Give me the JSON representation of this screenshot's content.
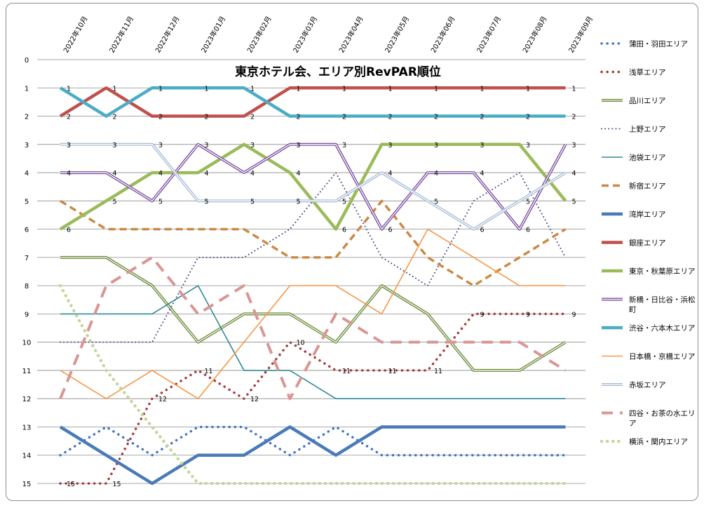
{
  "chart_data": {
    "type": "line",
    "title": "東京ホテル会、エリア別RevPAR順位",
    "x": [
      "2022年10月",
      "2022年11月",
      "2022年12月",
      "2023年01月",
      "2023年02月",
      "2023年03月",
      "2023年04月",
      "2023年05月",
      "2023年06月",
      "2023年07月",
      "2023年08月",
      "2023年09月"
    ],
    "y_ticks": [
      "0",
      "1",
      "2",
      "3",
      "4",
      "5",
      "6",
      "7",
      "8",
      "9",
      "10",
      "11",
      "12",
      "13",
      "14",
      "15"
    ],
    "ylim": [
      0,
      15
    ],
    "y_inverted": true,
    "grid": true,
    "legend_position": "right",
    "series": [
      {
        "name": "蒲田・羽田エリア",
        "color": "#4472c4",
        "style": "dot-round",
        "values": [
          14,
          13,
          14,
          13,
          13,
          14,
          13,
          14,
          14,
          14,
          14,
          14
        ],
        "labels": []
      },
      {
        "name": "浅草エリア",
        "color": "#a83a3a",
        "style": "dot-round",
        "values": [
          15,
          15,
          12,
          11,
          12,
          10,
          11,
          11,
          11,
          9,
          9,
          9
        ],
        "labels": [
          "15",
          "15",
          "12",
          "11",
          "12",
          "10",
          "11",
          "11",
          "11",
          "9",
          "9",
          "9"
        ]
      },
      {
        "name": "品川エリア",
        "color": "#6a8a3a",
        "style": "double",
        "values": [
          7,
          7,
          8,
          10,
          9,
          9,
          10,
          8,
          9,
          11,
          11,
          10
        ],
        "labels": []
      },
      {
        "name": "上野エリア",
        "color": "#4d4d8c",
        "style": "dot-small",
        "values": [
          10,
          10,
          10,
          7,
          7,
          6,
          4,
          7,
          8,
          5,
          4,
          7
        ],
        "labels": []
      },
      {
        "name": "池袋エリア",
        "color": "#2e8b95",
        "style": "solid-thin",
        "values": [
          9,
          9,
          9,
          8,
          11,
          11,
          12,
          12,
          12,
          12,
          12,
          12
        ],
        "labels": []
      },
      {
        "name": "新宿エリア",
        "color": "#cc8a45",
        "style": "dash",
        "values": [
          5,
          6,
          6,
          6,
          6,
          7,
          7,
          5,
          7,
          8,
          7,
          6
        ],
        "labels": []
      },
      {
        "name": "湾岸エリア",
        "color": "#4a7ab8",
        "style": "solid-thick",
        "values": [
          13,
          14,
          15,
          14,
          14,
          13,
          14,
          13,
          13,
          13,
          13,
          13
        ],
        "labels": []
      },
      {
        "name": "銀座エリア",
        "color": "#c0504d",
        "style": "solid-thick",
        "values": [
          2,
          1,
          2,
          2,
          2,
          1,
          1,
          1,
          1,
          1,
          1,
          1
        ],
        "labels": [
          "2",
          "1",
          "2",
          "2",
          "2",
          "1",
          "1",
          "1",
          "1",
          "1",
          "1",
          "1"
        ]
      },
      {
        "name": "東京・秋葉原エリア",
        "color": "#9bbb59",
        "style": "solid-thick",
        "values": [
          6,
          5,
          4,
          4,
          3,
          4,
          6,
          3,
          3,
          3,
          3,
          5
        ],
        "labels": [
          "6",
          "5",
          "4",
          "4",
          "3",
          "4",
          "6",
          "3",
          "3",
          "3",
          "3",
          "5"
        ]
      },
      {
        "name": "新橋・日比谷・浜松町",
        "color": "#7a4fa0",
        "style": "double",
        "values": [
          4,
          4,
          5,
          3,
          4,
          3,
          3,
          6,
          4,
          4,
          6,
          3
        ],
        "labels": [
          "4",
          "4",
          "5",
          "3",
          "4",
          "3",
          "3",
          "6",
          "4",
          "4",
          "6",
          "3"
        ]
      },
      {
        "name": "渋谷・六本木エリア",
        "color": "#4bacc6",
        "style": "solid-thick",
        "values": [
          1,
          2,
          1,
          1,
          1,
          2,
          2,
          2,
          2,
          2,
          2,
          2
        ],
        "labels": [
          "1",
          "2",
          "1",
          "1",
          "1",
          "2",
          "2",
          "2",
          "2",
          "2",
          "2",
          "2"
        ]
      },
      {
        "name": "日本橋・京橋エリア",
        "color": "#f79646",
        "style": "solid-thin",
        "values": [
          11,
          12,
          11,
          12,
          10,
          8,
          8,
          9,
          6,
          7,
          8,
          8
        ],
        "labels": []
      },
      {
        "name": "赤坂エリア",
        "color": "#a9bcd8",
        "style": "double",
        "values": [
          3,
          3,
          3,
          5,
          5,
          5,
          5,
          4,
          5,
          6,
          5,
          4
        ],
        "labels": [
          "3",
          "3",
          "3",
          "5",
          "5",
          "5",
          "5",
          "4",
          "5",
          "6",
          "5",
          "4"
        ]
      },
      {
        "name": "四谷・お茶の水エリア",
        "color": "#d99694",
        "style": "dash-long",
        "values": [
          12,
          8,
          7,
          9,
          8,
          12,
          9,
          10,
          10,
          10,
          10,
          11
        ],
        "labels": []
      },
      {
        "name": "横浜・関内エリア",
        "color": "#c3d69b",
        "style": "dot-big",
        "values": [
          8,
          11,
          13,
          15,
          15,
          15,
          15,
          15,
          15,
          15,
          15,
          15
        ],
        "labels": []
      }
    ]
  }
}
